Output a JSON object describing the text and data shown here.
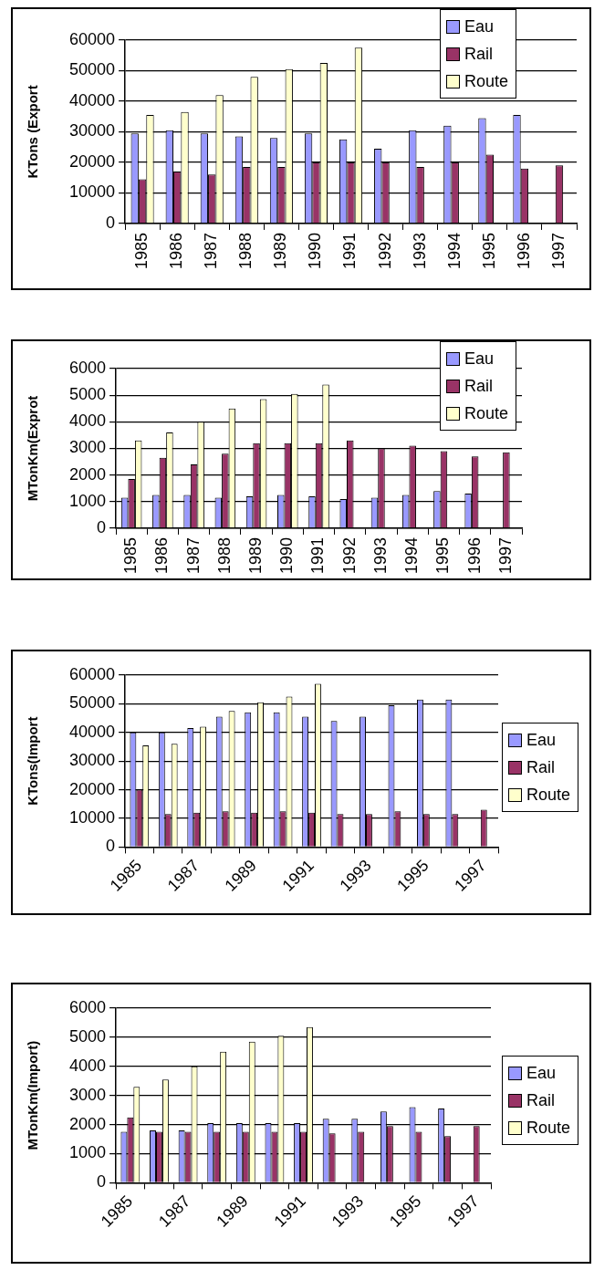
{
  "chart_data": [
    {
      "type": "bar",
      "ylabel": "KTons (Export",
      "categories": [
        "1985",
        "1986",
        "1987",
        "1988",
        "1989",
        "1990",
        "1991",
        "1992",
        "1993",
        "1994",
        "1995",
        "1996",
        "1997"
      ],
      "series": [
        {
          "name": "Eau",
          "color": "#9999ff",
          "values": [
            29500,
            30500,
            29500,
            28500,
            28000,
            29500,
            27500,
            24500,
            30500,
            32000,
            34500,
            35500,
            null
          ]
        },
        {
          "name": "Rail",
          "color": "#993366",
          "values": [
            14500,
            17000,
            16000,
            18500,
            18500,
            20000,
            20000,
            20000,
            18500,
            20000,
            22500,
            18000,
            19000
          ]
        },
        {
          "name": "Route",
          "color": "#ffffcc",
          "values": [
            35500,
            36500,
            42000,
            48000,
            50500,
            52500,
            57500,
            null,
            null,
            null,
            null,
            null,
            null
          ]
        }
      ],
      "ylim": [
        0,
        60000
      ],
      "yticks": [
        0,
        10000,
        20000,
        30000,
        40000,
        50000,
        60000
      ],
      "grid": "y",
      "legend": "top right"
    },
    {
      "type": "bar",
      "ylabel": "MTonKm(Exprot",
      "categories": [
        "1985",
        "1986",
        "1987",
        "1988",
        "1989",
        "1990",
        "1991",
        "1992",
        "1993",
        "1994",
        "1995",
        "1996",
        "1997"
      ],
      "series": [
        {
          "name": "Eau",
          "color": "#9999ff",
          "values": [
            1150,
            1250,
            1250,
            1150,
            1200,
            1250,
            1200,
            1100,
            1150,
            1250,
            1400,
            1300,
            null
          ]
        },
        {
          "name": "Rail",
          "color": "#993366",
          "values": [
            1850,
            2650,
            2400,
            2800,
            3200,
            3200,
            3200,
            3300,
            3000,
            3100,
            2900,
            2700,
            2850
          ]
        },
        {
          "name": "Route",
          "color": "#ffffcc",
          "values": [
            3300,
            3600,
            4000,
            4500,
            4850,
            5050,
            5400,
            null,
            null,
            null,
            null,
            null,
            null
          ]
        }
      ],
      "ylim": [
        0,
        6000
      ],
      "yticks": [
        0,
        1000,
        2000,
        3000,
        4000,
        5000,
        6000
      ],
      "grid": "y",
      "legend": "top right"
    },
    {
      "type": "bar",
      "ylabel": "KTons(Import",
      "categories": [
        "1985",
        null,
        "1987",
        null,
        "1989",
        null,
        "1991",
        null,
        "1993",
        null,
        "1995",
        null,
        "1997"
      ],
      "series": [
        {
          "name": "Eau",
          "color": "#9999ff",
          "values": [
            40000,
            40000,
            41500,
            45500,
            47000,
            47000,
            45500,
            44000,
            45500,
            49500,
            51500,
            51500,
            null
          ]
        },
        {
          "name": "Rail",
          "color": "#993366",
          "values": [
            20000,
            11500,
            12000,
            12500,
            12000,
            12500,
            12000,
            11500,
            11500,
            12500,
            11500,
            11500,
            13000
          ]
        },
        {
          "name": "Route",
          "color": "#ffffcc",
          "values": [
            35500,
            36000,
            42000,
            47500,
            50500,
            52500,
            57000,
            null,
            null,
            null,
            null,
            null,
            null
          ]
        }
      ],
      "ylim": [
        0,
        60000
      ],
      "yticks": [
        0,
        10000,
        20000,
        30000,
        40000,
        50000,
        60000
      ],
      "grid": "y",
      "legend": "right"
    },
    {
      "type": "bar",
      "ylabel": "MTonKm(Import)",
      "categories": [
        "1985",
        null,
        "1987",
        null,
        "1989",
        null,
        "1991",
        null,
        "1993",
        null,
        "1995",
        null,
        "1997"
      ],
      "series": [
        {
          "name": "Eau",
          "color": "#9999ff",
          "values": [
            1750,
            1800,
            1800,
            2050,
            2050,
            2050,
            2050,
            2200,
            2200,
            2450,
            2600,
            2550,
            null
          ]
        },
        {
          "name": "Rail",
          "color": "#993366",
          "values": [
            2250,
            1750,
            1750,
            1750,
            1750,
            1750,
            1750,
            1700,
            1750,
            1950,
            1750,
            1600,
            1950
          ]
        },
        {
          "name": "Route",
          "color": "#ffffcc",
          "values": [
            3300,
            3550,
            4000,
            4500,
            4850,
            5050,
            5350,
            null,
            null,
            null,
            null,
            null,
            null
          ]
        }
      ],
      "ylim": [
        0,
        6000
      ],
      "yticks": [
        0,
        1000,
        2000,
        3000,
        4000,
        5000,
        6000
      ],
      "grid": "y",
      "legend": "right"
    }
  ]
}
